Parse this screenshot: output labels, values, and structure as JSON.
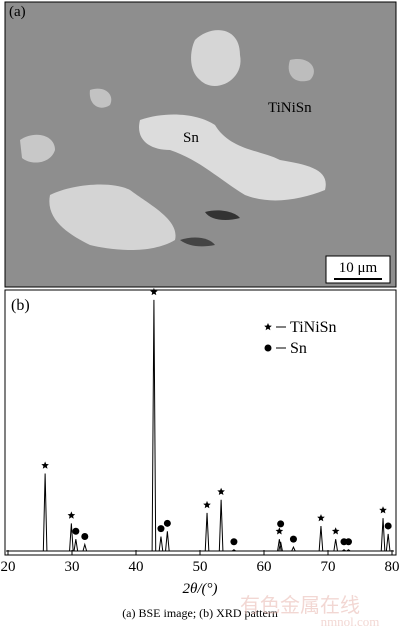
{
  "image_panel": {
    "label": "(a)",
    "annotations": [
      "Sn",
      "TiNiSn"
    ],
    "scale_bar": "10 μm"
  },
  "chart_data": {
    "type": "xrd",
    "panel_label": "(b)",
    "x_label": "2θ/(°)",
    "xlim": [
      20,
      80
    ],
    "xticks": [
      20,
      30,
      40,
      50,
      60,
      70,
      80
    ],
    "ylim": [
      0,
      100
    ],
    "baseline": 1.5,
    "series": [
      {
        "name": "TiNiSn",
        "marker": "star",
        "color": "#000000",
        "x": [
          25.8,
          29.9,
          42.8,
          51.1,
          53.3,
          62.4,
          68.9,
          71.2,
          78.6
        ],
        "values": [
          31,
          12,
          97,
          16,
          21,
          6,
          11,
          6,
          14
        ]
      },
      {
        "name": "Sn",
        "marker": "circle",
        "color": "#000000",
        "x": [
          30.6,
          32.0,
          43.9,
          44.9,
          55.3,
          62.6,
          64.6,
          72.5,
          73.2,
          79.4
        ],
        "values": [
          6,
          4,
          7,
          9,
          2,
          5,
          3,
          2,
          2,
          8
        ]
      }
    ]
  },
  "caption": "(a) BSE image; (b) XRD pattern",
  "watermark": [
    "有色金属在线",
    "nmnol.com"
  ]
}
